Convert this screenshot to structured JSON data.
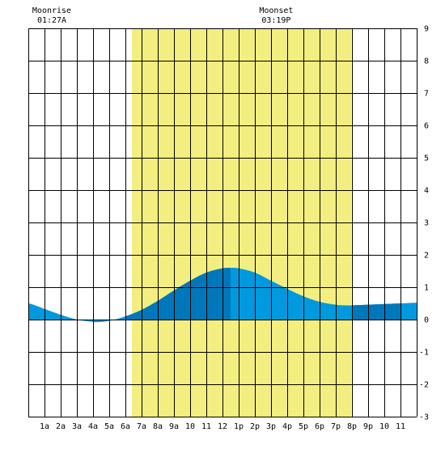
{
  "chart_data": {
    "type": "area",
    "title": "",
    "xlabel": "",
    "ylabel": "",
    "x_range": [
      0,
      24
    ],
    "ylim": [
      -3,
      9
    ],
    "y_ticks": [
      -3,
      -2,
      -1,
      0,
      1,
      2,
      3,
      4,
      5,
      6,
      7,
      8,
      9
    ],
    "x_tick_labels": [
      "1a",
      "2a",
      "3a",
      "4a",
      "5a",
      "6a",
      "7a",
      "8a",
      "9a",
      "10",
      "11",
      "12",
      "1p",
      "2p",
      "3p",
      "4p",
      "5p",
      "6p",
      "7p",
      "8p",
      "9p",
      "10",
      "11"
    ],
    "grid": true,
    "daylight": {
      "start": 6.4,
      "end": 19.95,
      "color": "#f2ee80"
    },
    "moon_events": [
      {
        "label": "Moonrise",
        "time": "01:27A",
        "hour": 1.45
      },
      {
        "label": "Moonset",
        "time": "03:19P",
        "hour": 15.32
      }
    ],
    "series": [
      {
        "x": [
          0,
          1,
          2,
          3,
          4,
          4.2,
          5,
          6,
          7,
          8,
          9,
          10,
          11,
          12,
          12.6,
          13,
          14,
          15,
          16,
          17,
          18,
          19,
          19.5,
          20,
          21,
          22,
          23,
          24
        ],
        "values": [
          0.5,
          0.33,
          0.15,
          0.0,
          -0.07,
          -0.08,
          -0.04,
          0.1,
          0.3,
          0.58,
          0.9,
          1.2,
          1.45,
          1.58,
          1.6,
          1.58,
          1.45,
          1.2,
          0.95,
          0.72,
          0.55,
          0.46,
          0.44,
          0.44,
          0.46,
          0.48,
          0.5,
          0.52
        ]
      }
    ],
    "colors": {
      "fill_light": "#0099dd",
      "fill_dark": "#0077bb",
      "grid": "#000000"
    },
    "dark_bands": [
      [
        6,
        12.5
      ],
      [
        20,
        23
      ]
    ]
  }
}
